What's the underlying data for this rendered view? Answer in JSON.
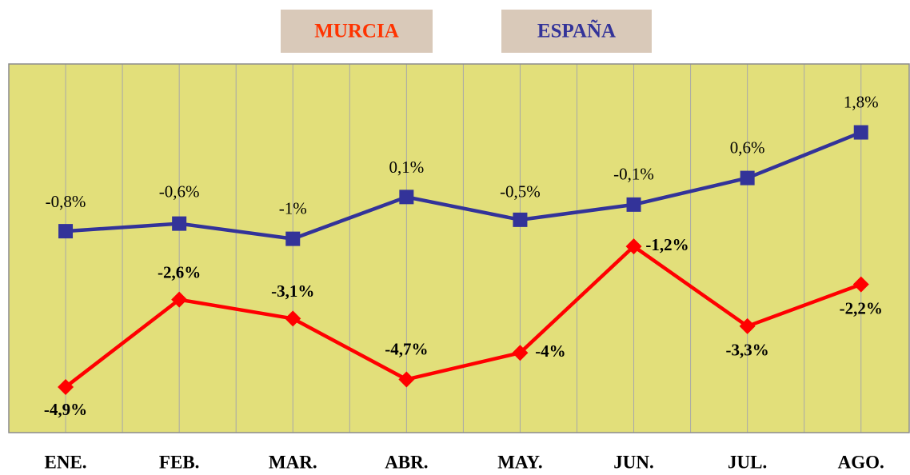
{
  "chart_data": {
    "type": "line",
    "categories": [
      "ENE.",
      "FEB.",
      "MAR.",
      "ABR.",
      "MAY.",
      "JUN.",
      "JUL.",
      "AGO."
    ],
    "series": [
      {
        "name": "MURCIA",
        "color": "#ff0000",
        "marker": "diamond",
        "values": [
          -4.9,
          -2.6,
          -3.1,
          -4.7,
          -4,
          -1.2,
          -3.3,
          -2.2
        ],
        "value_labels": [
          "-4,9%",
          "-2,6%",
          "-3,1%",
          "-4,7%",
          "-4%",
          "-1,2%",
          "-3,3%",
          "-2,2%"
        ]
      },
      {
        "name": "ESPAÑA",
        "color": "#333399",
        "marker": "square",
        "values": [
          -0.8,
          -0.6,
          -1,
          0.1,
          -0.5,
          -0.1,
          0.6,
          1.8
        ],
        "value_labels": [
          "-0,8%",
          "-0,6%",
          "-1%",
          "0,1%",
          "-0,5%",
          "-0,1%",
          "0,6%",
          "1,8%"
        ]
      }
    ],
    "ylim": [
      -6.1,
      3.6
    ],
    "grid": true,
    "background": "#e2df7a"
  }
}
